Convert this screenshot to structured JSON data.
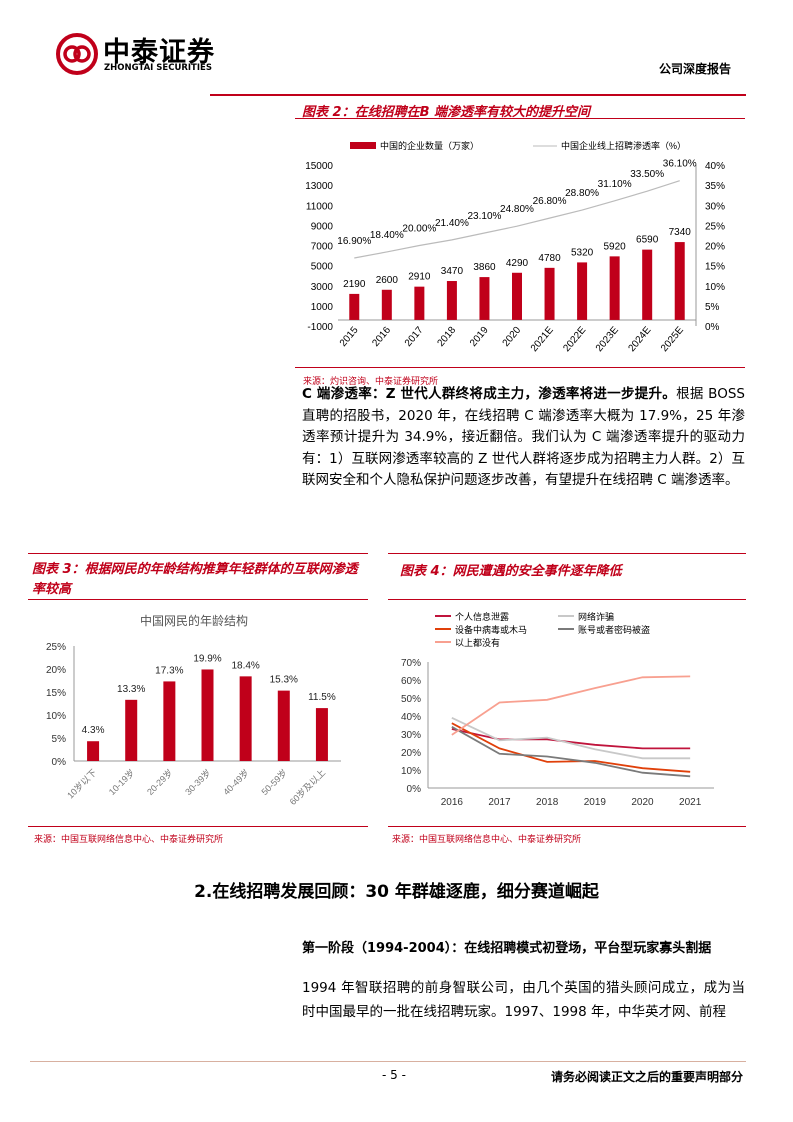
{
  "header": {
    "logo_cn": "中泰证券",
    "logo_en": "ZHONGTAI SECURITIES",
    "report_type": "公司深度报告"
  },
  "fig2": {
    "title": "图表 2：在线招聘在B 端渗透率有较大的提升空间",
    "source": "来源：灼识咨询、中泰证券研究所"
  },
  "fig3": {
    "title": "图表 3：根据网民的年龄结构推算年轻群体的互联网渗透率较高",
    "source": "来源：中国互联网络信息中心、中泰证券研究所"
  },
  "fig4": {
    "title": "图表 4：网民遭遇的安全事件逐年降低",
    "source": "来源：中国互联网络信息中心、中泰证券研究所"
  },
  "paragraph1": {
    "lead": "C 端渗透率：Z 世代人群终将成主力，渗透率将进一步提升。",
    "text": "根据 BOSS 直聘的招股书，2020 年，在线招聘 C 端渗透率大概为 17.9%，25 年渗透率预计提升为 34.9%，接近翻倍。我们认为 C 端渗透率提升的驱动力有：1）互联网渗透率较高的 Z 世代人群将逐步成为招聘主力人群。2）互联网安全和个人隐私保护问题逐步改善，有望提升在线招聘 C 端渗透率。"
  },
  "section": {
    "heading": "2.在线招聘发展回顾：30 年群雄逐鹿，细分赛道崛起",
    "subheading": "第一阶段（1994-2004）：在线招聘模式初登场，平台型玩家寡头割据",
    "text": "1994 年智联招聘的前身智联公司，由几个英国的猎头顾问成立，成为当时中国最早的一批在线招聘玩家。1997、1998 年，中华英才网、前程"
  },
  "footer": {
    "page": "- 5 -",
    "disclaimer": "请务必阅读正文之后的重要声明部分"
  },
  "colors": {
    "accent": "#c0001a"
  },
  "chart_data": [
    {
      "type": "bar+line",
      "categories": [
        "2015",
        "2016",
        "2017",
        "2018",
        "2019",
        "2020",
        "2021E",
        "2022E",
        "2023E",
        "2024E",
        "2025E"
      ],
      "series": [
        {
          "name": "中国的企业数量（万家）",
          "type": "bar",
          "values": [
            2190,
            2600,
            2910,
            3470,
            3860,
            4290,
            4780,
            5320,
            5920,
            6590,
            7340
          ],
          "labels": [
            "2190",
            "2600",
            "2910",
            "3470",
            "3860",
            "4290",
            "4780",
            "5320",
            "5920",
            "6590",
            "7340"
          ]
        },
        {
          "name": "中国企业线上招聘渗透率（%）",
          "type": "line",
          "values": [
            16.9,
            18.4,
            20.0,
            21.4,
            23.1,
            24.8,
            26.8,
            28.8,
            31.1,
            33.5,
            36.1
          ],
          "labels": [
            "16.90%",
            "18.40%",
            "20.00%",
            "21.40%",
            "23.10%",
            "24.80%",
            "26.80%",
            "28.80%",
            "31.10%",
            "33.50%",
            "36.10%"
          ]
        }
      ],
      "ylim": [
        -1000,
        15000
      ],
      "yticks": [
        "15000",
        "13000",
        "11000",
        "9000",
        "7000",
        "5000",
        "3000",
        "1000",
        "-1000"
      ],
      "y2lim": [
        0,
        40
      ],
      "y2ticks": [
        "40%",
        "35%",
        "30%",
        "25%",
        "20%",
        "15%",
        "10%",
        "5%",
        "0%"
      ],
      "legend": "top"
    },
    {
      "type": "bar",
      "title": "中国网民的年龄结构",
      "categories": [
        "10岁以下",
        "10-19岁",
        "20-29岁",
        "30-39岁",
        "40-49岁",
        "50-59岁",
        "60岁及以上"
      ],
      "values": [
        4.3,
        13.3,
        17.3,
        19.9,
        18.4,
        15.3,
        11.5
      ],
      "labels": [
        "4.3%",
        "13.3%",
        "17.3%",
        "19.9%",
        "18.4%",
        "15.3%",
        "11.5%"
      ],
      "ylim": [
        0,
        25
      ],
      "yticks": [
        "25%",
        "20%",
        "15%",
        "10%",
        "5%",
        "0%"
      ]
    },
    {
      "type": "line",
      "x": [
        "2016",
        "2017",
        "2018",
        "2019",
        "2020",
        "2021"
      ],
      "series": [
        {
          "name": "个人信息泄露",
          "color": "#c0143c",
          "values": [
            32.8,
            27,
            27,
            24,
            22,
            22
          ]
        },
        {
          "name": "网络诈骗",
          "color": "#c8c8c8",
          "values": [
            39,
            26.5,
            28,
            21.5,
            16.5,
            16.5
          ]
        },
        {
          "name": "设备中病毒或木马",
          "color": "#e0400a",
          "values": [
            36,
            22,
            14.5,
            15,
            11,
            9
          ]
        },
        {
          "name": "账号或者密码被盗",
          "color": "#7a7a7a",
          "values": [
            34,
            19,
            17.5,
            14,
            8.5,
            6.5
          ]
        },
        {
          "name": "以上都没有",
          "color": "#f8a090",
          "values": [
            29.5,
            47.5,
            49,
            55.5,
            61.5,
            62
          ]
        }
      ],
      "ylim": [
        0,
        70
      ],
      "yticks": [
        "70%",
        "60%",
        "50%",
        "40%",
        "30%",
        "20%",
        "10%",
        "0%"
      ],
      "legend": "top"
    }
  ]
}
